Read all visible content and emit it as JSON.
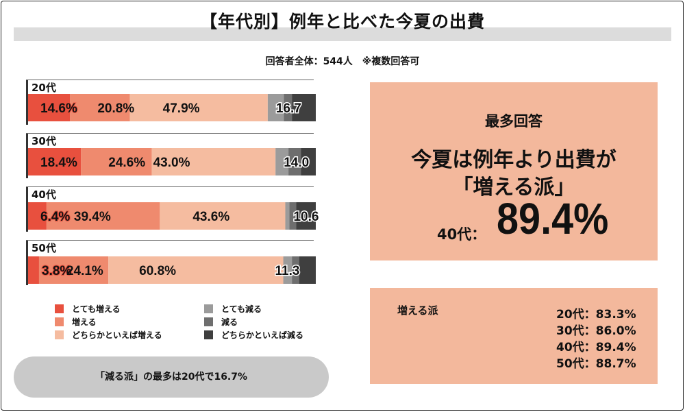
{
  "title": "【年代別】例年と比べた今夏の出費",
  "subtitle": "回答者全体：544人　※複数回答可",
  "chart_data": {
    "type": "bar",
    "stacked": true,
    "orientation": "horizontal",
    "categories": [
      "20代",
      "30代",
      "40代",
      "50代"
    ],
    "series": [
      {
        "name": "とても増える",
        "color": "#e8503e",
        "values": [
          14.6,
          18.4,
          6.4,
          3.8
        ]
      },
      {
        "name": "増える",
        "color": "#ef8a6e",
        "values": [
          20.8,
          24.6,
          39.4,
          24.1
        ]
      },
      {
        "name": "どちらかといえば増える",
        "color": "#f5bca0",
        "values": [
          47.9,
          43.0,
          43.6,
          60.8
        ]
      },
      {
        "name": "とても減る",
        "color": "#9b9b9b",
        "values": [
          5.6,
          4.5,
          1.4,
          3.0
        ]
      },
      {
        "name": "減る",
        "color": "#6e6e6e",
        "values": [
          2.8,
          4.3,
          2.4,
          2.5
        ]
      },
      {
        "name": "どちらかといえば減る",
        "color": "#3f3f3f",
        "values": [
          8.3,
          5.2,
          6.8,
          5.8
        ]
      }
    ],
    "labels": [
      [
        "14.6%",
        "20.8%",
        "47.9%",
        "16.7"
      ],
      [
        "18.4%",
        "24.6%",
        "43.0%",
        "14.0"
      ],
      [
        "6.4%",
        "39.4%",
        "43.6%",
        "10.6"
      ],
      [
        "3.8%",
        "24.1%",
        "60.8%",
        "11.3"
      ]
    ],
    "decrease_totals": [
      16.7,
      14.0,
      10.6,
      11.3
    ],
    "legend_position": "bottom",
    "xlim": [
      0,
      100
    ]
  },
  "legend": {
    "left": [
      {
        "label": "とても増える",
        "color": "#e8503e"
      },
      {
        "label": "増える",
        "color": "#ef8a6e"
      },
      {
        "label": "どちらかといえば増える",
        "color": "#f5bca0"
      }
    ],
    "right": [
      {
        "label": "とても減る",
        "color": "#9b9b9b"
      },
      {
        "label": "減る",
        "color": "#6e6e6e"
      },
      {
        "label": "どちらかといえば減る",
        "color": "#3f3f3f"
      }
    ]
  },
  "note": "「減る派」の最多は20代で16.7%",
  "top_box": {
    "heading": "最多回答",
    "line1": "今夏は例年より出費が",
    "line2": "「増える派」",
    "age_label": "40代：",
    "value": "89.4%"
  },
  "bottom_box": {
    "heading": "増える派",
    "rows": [
      "20代：83.3%",
      "30代：86.0%",
      "40代：89.4%",
      "50代：88.7%"
    ]
  }
}
